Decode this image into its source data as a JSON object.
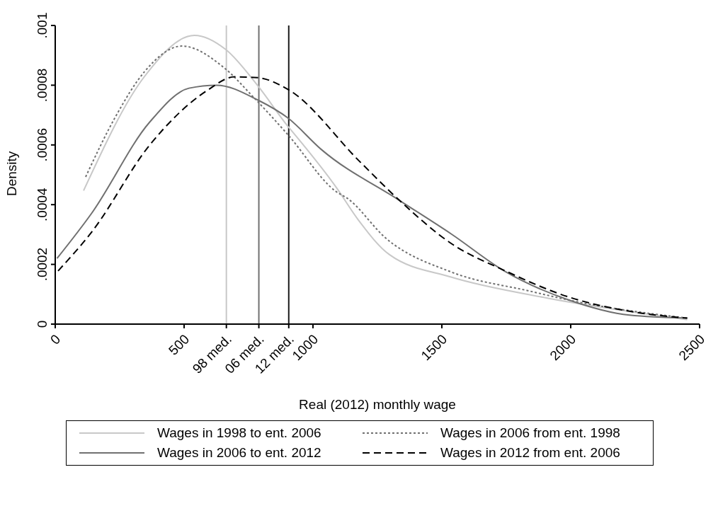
{
  "chart_data": {
    "type": "line",
    "xlabel": "Real (2012) monthly wage",
    "ylabel": "Density",
    "xlim": [
      0,
      2500
    ],
    "xticks": [
      0,
      500,
      1000,
      1500,
      2000,
      2500
    ],
    "ylim": [
      0,
      0.001
    ],
    "yticks": [
      {
        "value": 0,
        "label": "0"
      },
      {
        "value": 0.0002,
        "label": ".0002"
      },
      {
        "value": 0.0004,
        "label": ".0004"
      },
      {
        "value": 0.0006,
        "label": ".0006"
      },
      {
        "value": 0.0008,
        "label": ".0008"
      },
      {
        "value": 0.001,
        "label": ".001"
      }
    ],
    "grid": false,
    "legend": "bottom",
    "marker": "none",
    "ref_lines": [
      {
        "axis": "x",
        "value": 664,
        "label": "98 med.",
        "color": "#c8c8c8"
      },
      {
        "axis": "x",
        "value": 790,
        "label": "06 med.",
        "color": "#707070"
      },
      {
        "axis": "x",
        "value": 906,
        "label": "12 med.",
        "color": "#1a1a1a"
      }
    ],
    "series": [
      {
        "name": "Wages in 1998 to ent. 2006",
        "color": "#c8c8c8",
        "line_style": "solid",
        "x": [
          110,
          347,
          540,
          661,
          787,
          903,
          930,
          1091,
          1175,
          1296,
          1538,
          1892,
          2452
        ],
        "values": [
          0.000447,
          0.00083,
          0.000967,
          0.00092,
          0.000797,
          0.000662,
          0.000634,
          0.000457,
          0.00035,
          0.000233,
          0.000157,
          9e-05,
          1.5e-05
        ]
      },
      {
        "name": "Wages in 2006 from ent. 1998",
        "color": "#707070",
        "line_style": "dotted",
        "x": [
          118,
          231,
          347,
          492,
          653,
          769,
          903,
          1091,
          1132,
          1285,
          1538,
          1844,
          1995,
          2452
        ],
        "values": [
          0.000493,
          0.00069,
          0.000846,
          0.000931,
          0.00086,
          0.00076,
          0.000634,
          0.000443,
          0.000422,
          0.000286,
          0.000174,
          0.00011,
          8e-05,
          2e-05
        ]
      },
      {
        "name": "Wages in 2006 to ent. 2012",
        "color": "#707070",
        "line_style": "solid",
        "x": [
          7,
          142,
          366,
          519,
          626,
          787,
          903,
          1032,
          1336,
          1538,
          1742,
          1995,
          2228,
          2452
        ],
        "values": [
          0.00022,
          0.000372,
          0.000676,
          0.00079,
          0.0008,
          0.00075,
          0.00069,
          0.000585,
          0.000414,
          0.000301,
          0.000178,
          8e-05,
          3e-05,
          2e-05
        ]
      },
      {
        "name": "Wages in 2012 from ent. 2006",
        "color": "#000000",
        "line_style": "dashed",
        "x": [
          11,
          142,
          366,
          589,
          696,
          787,
          903,
          1183,
          1336,
          1538,
          1742,
          1995,
          2250,
          2452
        ],
        "values": [
          0.000178,
          0.000309,
          0.000599,
          0.000782,
          0.000828,
          0.000825,
          0.000786,
          0.000543,
          0.000414,
          0.000269,
          0.00018,
          9e-05,
          4e-05,
          2e-05
        ]
      }
    ]
  }
}
